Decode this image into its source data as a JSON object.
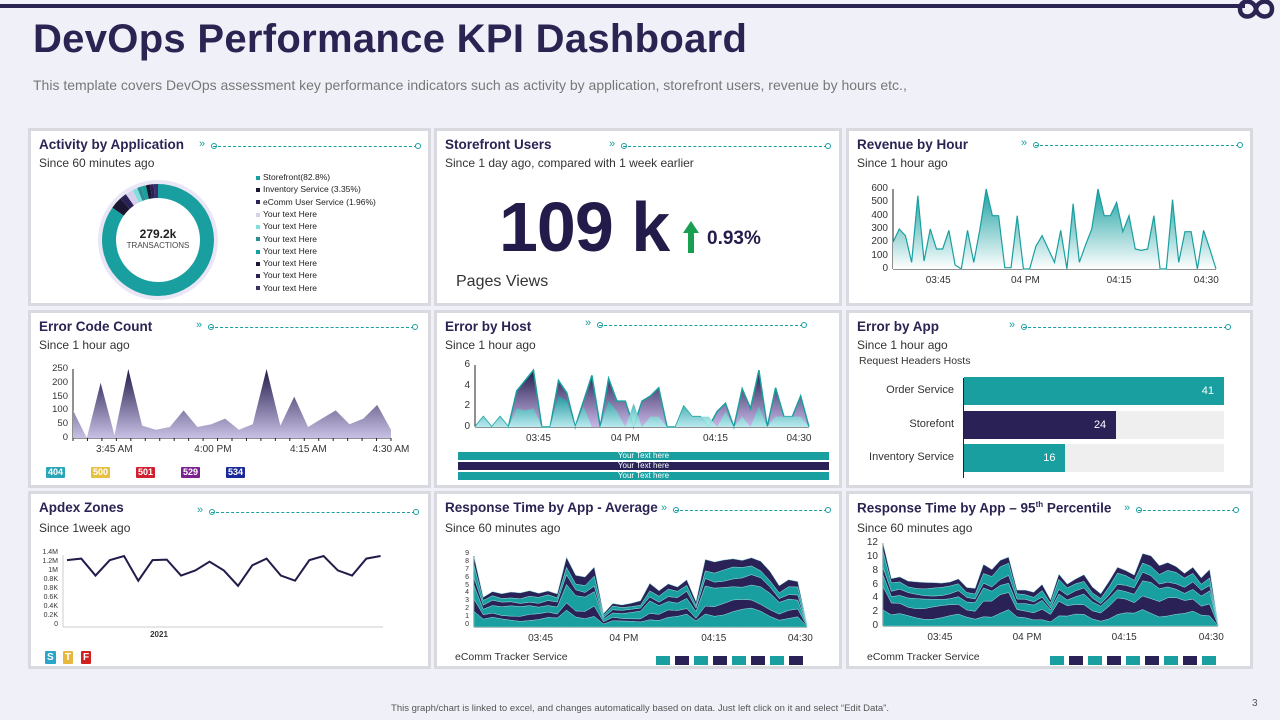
{
  "header": {
    "title": "DevOps Performance KPI Dashboard",
    "subtitle": "This template covers DevOps assessment key performance indicators such as activity by application, storefront users, revenue by hours etc.,"
  },
  "colors": {
    "navy": "#2b2453",
    "teal": "#1a9fa0",
    "dark": "#2a2157",
    "green": "#18a050"
  },
  "activity": {
    "title": "Activity  by Application",
    "subtitle": "Since 60 minutes ago",
    "center_value": "279.2k",
    "center_label": "TRANSACTIONS",
    "legend": [
      {
        "label": "Storefront(82.8%)",
        "value": 82.8,
        "color": "#1a9fa0"
      },
      {
        "label": "Inventory Service (3.35%)",
        "value": 3.35,
        "color": "#1b1733"
      },
      {
        "label": "eComm User Service (1.96%)",
        "value": 1.96,
        "color": "#2a2157"
      },
      {
        "label": "Your text Here",
        "value": 2.2,
        "color": "#d8d0ea"
      },
      {
        "label": "Your text Here",
        "value": 1.4,
        "color": "#7fe0e0"
      },
      {
        "label": "Your text Here",
        "value": 1.2,
        "color": "#2a8f90"
      },
      {
        "label": "Your text Here",
        "value": 1.3,
        "color": "#1a9fa0"
      },
      {
        "label": "Your text Here",
        "value": 1.2,
        "color": "#1b1733"
      },
      {
        "label": "Your text Here",
        "value": 1.0,
        "color": "#2a2157"
      },
      {
        "label": "Your text Here",
        "value": 1.2,
        "color": "#3a2f6e"
      }
    ]
  },
  "storefront": {
    "title": "Storefront Users",
    "subtitle": "Since 1 day ago, compared with 1 week earlier",
    "value": "109 k",
    "change": "0.93%",
    "metric_label": "Pages Views"
  },
  "revenue": {
    "title": "Revenue by Hour",
    "subtitle": "Since 1 hour ago"
  },
  "error_code": {
    "title": "Error Code Count",
    "subtitle": "Since 1 hour ago",
    "legend": [
      {
        "label": "404",
        "color": "#2aa6b8"
      },
      {
        "label": "500",
        "color": "#e6c040"
      },
      {
        "label": "501",
        "color": "#d02030"
      },
      {
        "label": "529",
        "color": "#7a2090"
      },
      {
        "label": "534",
        "color": "#1a2a9a"
      }
    ]
  },
  "error_host": {
    "title": "Error by Host",
    "subtitle": "Since 1 hour ago",
    "bars": [
      "Your Text here",
      "Your Text here",
      "Your Text here"
    ]
  },
  "error_app": {
    "title": "Error by App",
    "subtitle": "Since 1 hour ago",
    "caption": "Request Headers Hosts"
  },
  "apdex": {
    "title": "Apdex Zones",
    "subtitle": "Since 1week ago",
    "badges": [
      {
        "label": "S",
        "color": "#2aa6c8"
      },
      {
        "label": "T",
        "color": "#e6b840"
      },
      {
        "label": "F",
        "color": "#d02020"
      }
    ]
  },
  "resp_avg": {
    "title": "Response  Time by App  - Average",
    "subtitle": "Since 60 minutes ago",
    "series_label": "eComm  Tracker Service",
    "swatches": [
      "#1a9fa0",
      "#2a2157",
      "#1a9fa0",
      "#2a2157",
      "#1a9fa0",
      "#2a2157",
      "#1a9fa0",
      "#2a2157"
    ]
  },
  "resp_95": {
    "title": "Response  Time by App – 95",
    "title_sup": "th",
    "title_end": " Percentile",
    "subtitle": "Since 60 minutes ago",
    "series_label": "eComm  Tracker Service",
    "swatches": [
      "#1a9fa0",
      "#2a2157",
      "#1a9fa0",
      "#2a2157",
      "#1a9fa0",
      "#2a2157",
      "#1a9fa0",
      "#2a2157",
      "#1a9fa0"
    ]
  },
  "footer": {
    "note": "This graph/chart is linked to excel, and changes automatically based on data. Just left click on it and select “Edit Data”.",
    "page": "3"
  },
  "chart_data": [
    {
      "id": "revenue",
      "type": "area",
      "ylim": [
        0,
        600
      ],
      "yticks": [
        "0",
        "100",
        "200",
        "300",
        "400",
        "500",
        "600"
      ],
      "xticks": [
        "03:45",
        "04 PM",
        "04:15",
        "04:30"
      ],
      "values": [
        200,
        300,
        250,
        50,
        550,
        60,
        300,
        150,
        150,
        290,
        30,
        0,
        290,
        50,
        300,
        600,
        400,
        400,
        10,
        10,
        400,
        0,
        0,
        170,
        250,
        150,
        50,
        290,
        0,
        490,
        50,
        180,
        300,
        600,
        400,
        400,
        500,
        280,
        400,
        150,
        140,
        150,
        400,
        0,
        0,
        520,
        50,
        280,
        280,
        0,
        290,
        150,
        0
      ]
    },
    {
      "id": "error_code",
      "type": "area",
      "ylim": [
        0,
        250
      ],
      "yticks": [
        "0",
        "50",
        "100",
        "150",
        "200",
        "250"
      ],
      "xticks": [
        "3:45 AM",
        "4:00 PM",
        "4:15 AM",
        "4:30 AM"
      ],
      "values": [
        100,
        0,
        200,
        10,
        250,
        45,
        30,
        40,
        100,
        40,
        50,
        70,
        30,
        50,
        250,
        45,
        150,
        40,
        70,
        100,
        50,
        70,
        120,
        30
      ]
    },
    {
      "id": "error_host",
      "type": "area",
      "ylim": [
        0,
        6
      ],
      "yticks": [
        "0",
        "2",
        "4",
        "6"
      ],
      "xticks": [
        "03:45",
        "04 PM",
        "04:15",
        "04:30"
      ],
      "series": [
        {
          "name": "host-total",
          "values": [
            0,
            1,
            0,
            1,
            0,
            3.5,
            4.5,
            5.5,
            0,
            0,
            4.5,
            3.3,
            0,
            2.5,
            5,
            0,
            4.7,
            2.5,
            2.5,
            0,
            2.5,
            3,
            3.8,
            0,
            0,
            2,
            1,
            1,
            0,
            1.5,
            2.3,
            0,
            3.7,
            1.8,
            5.5,
            0,
            3.8,
            1,
            1,
            3,
            0
          ]
        },
        {
          "name": "host-a",
          "values": [
            0,
            1,
            0,
            1,
            0,
            1.8,
            1.6,
            1.8,
            0,
            0,
            3,
            2.5,
            0,
            2,
            0,
            0,
            2.5,
            1.5,
            0,
            2.3,
            0,
            1,
            1,
            0,
            0,
            2,
            1,
            1,
            1,
            0,
            1.5,
            0,
            1,
            0,
            2,
            0,
            1,
            1,
            1,
            1,
            0
          ]
        }
      ]
    },
    {
      "id": "error_app",
      "type": "bar",
      "categories": [
        "Order Service",
        "Storefont",
        "Inventory Service"
      ],
      "values": [
        41,
        24,
        16
      ],
      "colors": [
        "#1a9fa0",
        "#2a2157",
        "#1a9fa0"
      ],
      "xmax": 41
    },
    {
      "id": "apdex",
      "type": "line",
      "ylim": [
        0,
        1.4
      ],
      "yticks": [
        "0",
        "0.2K",
        "0.4K",
        "0.6K",
        "0.8K",
        "0.8K",
        "1M",
        "1.2M",
        "1.4M"
      ],
      "xticks": [
        "2021"
      ],
      "values": [
        1.3,
        1.33,
        1.0,
        1.3,
        1.38,
        0.9,
        1.3,
        1.31,
        1.0,
        1.1,
        1.27,
        1.1,
        0.8,
        1.2,
        1.33,
        1.0,
        0.9,
        1.3,
        1.38,
        1.1,
        1.0,
        1.33,
        1.38
      ]
    },
    {
      "id": "resp_avg",
      "type": "stacked-area",
      "ylim": [
        0,
        9
      ],
      "yticks": [
        "0",
        "1",
        "2",
        "3",
        "4",
        "5",
        "6",
        "7",
        "8",
        "9"
      ],
      "xticks": [
        "03:45",
        "04 PM",
        "04:15",
        "04:30"
      ],
      "totals": [
        9,
        3.8,
        4.5,
        4.2,
        4.4,
        4.3,
        4.6,
        4.3,
        4.6,
        4.2,
        8.8,
        6.5,
        6.3,
        7.6,
        1.7,
        3,
        2.8,
        3,
        3.3,
        5.5,
        4.6,
        5.5,
        5.1,
        6,
        3.2,
        8.5,
        8.2,
        8.5,
        8.7,
        8.5,
        8.8,
        8.3,
        7,
        5.2,
        6,
        5.8,
        0.3
      ],
      "layer_shares": [
        0.22,
        0.14,
        0.24,
        0.12,
        0.14,
        0.14
      ]
    },
    {
      "id": "resp_95",
      "type": "stacked-area",
      "ylim": [
        0,
        12
      ],
      "yticks": [
        "0",
        "2",
        "4",
        "6",
        "8",
        "10",
        "12"
      ],
      "xticks": [
        "03:45",
        "04 PM",
        "04:15",
        "04:30"
      ],
      "totals": [
        12,
        7,
        7.5,
        7,
        6.8,
        6.5,
        6.3,
        6.2,
        6.5,
        7.2,
        6,
        5.8,
        9.2,
        8.2,
        9.5,
        10.2,
        5.5,
        5.6,
        5.2,
        6.2,
        3.8,
        7.5,
        6.2,
        7.2,
        8,
        6,
        4.8,
        6.5,
        8.5,
        8.2,
        7.8,
        11.3,
        10.8,
        9,
        9.2,
        8.6,
        7.8,
        9,
        7.5,
        8.7,
        0.3
      ],
      "layer_shares": [
        0.2,
        0.24,
        0.18,
        0.1,
        0.16,
        0.12
      ]
    }
  ]
}
